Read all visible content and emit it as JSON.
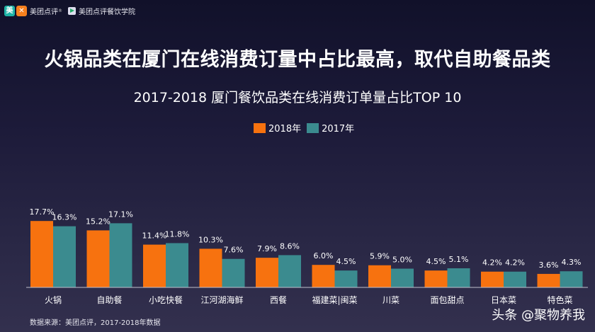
{
  "brand": {
    "logo1_glyph": "美",
    "logo2_glyph": "✕",
    "app_name": "美团点评",
    "app_tm": "®",
    "partner_name": "美团点评餐饮学院"
  },
  "headline": "火锅品类在厦门在线消费订量中占比最高，取代自助餐品类",
  "source_note": "数据来源：美团点评，2017-2018年数据",
  "watermark": "头条 @聚物养我",
  "colors": {
    "series_2018": "#f7720f",
    "series_2017": "#3b8b8f"
  },
  "chart_data": {
    "type": "bar",
    "title": "2017-2018 厦门餐饮品类在线消费订单量占比TOP 10",
    "categories": [
      "火锅",
      "自助餐",
      "小吃快餐",
      "江河湖海鲜",
      "西餐",
      "福建菜|闽菜",
      "川菜",
      "面包甜点",
      "日本菜",
      "特色菜"
    ],
    "series": [
      {
        "name": "2018年",
        "values": [
          17.7,
          15.2,
          11.4,
          10.3,
          7.9,
          6.0,
          5.9,
          4.5,
          4.2,
          3.6
        ],
        "labels": [
          "17.7%",
          "15.2%",
          "11.4%",
          "10.3%",
          "7.9%",
          "6.0%",
          "5.9%",
          "4.5%",
          "4.2%",
          "3.6%"
        ]
      },
      {
        "name": "2017年",
        "values": [
          16.3,
          17.1,
          11.8,
          7.6,
          8.6,
          4.5,
          5.0,
          5.1,
          4.2,
          4.3
        ],
        "labels": [
          "16.3%",
          "17.1%",
          "11.8%",
          "7.6%",
          "8.6%",
          "4.5%",
          "5.0%",
          "5.1%",
          "4.2%",
          "4.3%"
        ]
      }
    ],
    "legend_position": "top-center",
    "grid": false
  }
}
